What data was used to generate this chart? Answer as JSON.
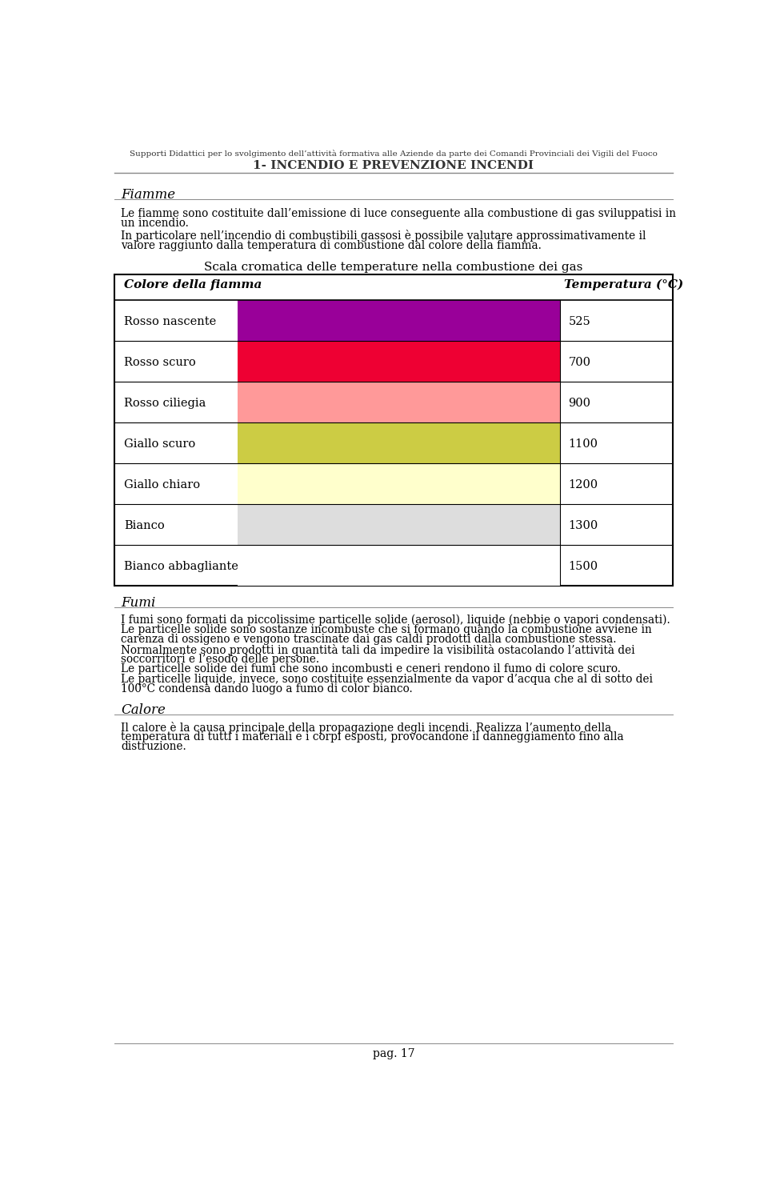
{
  "page_title_top": "Supporti Didattici per lo svolgimento dell’attività formativa alle Aziende da parte dei Comandi Provinciali dei Vigili del Fuoco",
  "page_title_bottom": "1- INCENDIO E PREVENZIONE INCENDI",
  "section1_title": "Fiamme",
  "table_title": "Scala cromatica delle temperature nella combustione dei gas",
  "col1_header": "Colore della fiamma",
  "col2_header": "Temperatura (°C)",
  "rows": [
    {
      "label": "Rosso nascente",
      "temp": "525",
      "color": "#990099"
    },
    {
      "label": "Rosso scuro",
      "temp": "700",
      "color": "#EE0033"
    },
    {
      "label": "Rosso ciliegia",
      "temp": "900",
      "color": "#FF9999"
    },
    {
      "label": "Giallo scuro",
      "temp": "1100",
      "color": "#CCCC44"
    },
    {
      "label": "Giallo chiaro",
      "temp": "1200",
      "color": "#FFFFCC"
    },
    {
      "label": "Bianco",
      "temp": "1300",
      "color": "#DDDDDD"
    },
    {
      "label": "Bianco abbagliante",
      "temp": "1500",
      "color": "#FFFFFF"
    }
  ],
  "section2_title": "Fumi",
  "section3_title": "Calore",
  "page_num": "pag. 17",
  "bg_color": "#FFFFFF",
  "text_color": "#000000",
  "font_family": "serif",
  "text1_lines": [
    "Le fiamme sono costituite dall’emissione di luce conseguente alla combustione di gas sviluppatisi in",
    "un incendio."
  ],
  "text2_lines": [
    "In particolare nell’incendio di combustibili gassosi è possibile valutare approssimativamente il",
    "valore raggiunto dalla temperatura di combustione dal colore della fiamma."
  ],
  "fumi_lines": [
    "I fumi sono formati da piccolissime particelle solide (aerosol), liquide (nebbie o vapori condensati).",
    "Le particelle solide sono sostanze incombuste che si formano quando la combustione avviene in",
    "carenza di ossigeno e vengono trascinate dai gas caldi prodotti dalla combustione stessa.",
    "Normalmente sono prodotti in quantità tali da impedire la visibilità ostacolando l’attività dei",
    "soccorritori e l’esodo delle persone.",
    "Le particelle solide dei fumi che sono incombusti e ceneri rendono il fumo di colore scuro.",
    "Le particelle liquide, invece, sono costituite essenzialmente da vapor d’acqua che al di sotto dei",
    "100°C condensa dando luogo a fumo di color bianco."
  ],
  "calore_lines": [
    "Il calore è la causa principale della propagazione degli incendi. Realizza l’aumento della",
    "temperatura di tutti i materiali e i corpi esposti, provocandone il danneggiamento fino alla",
    "distruzione."
  ]
}
